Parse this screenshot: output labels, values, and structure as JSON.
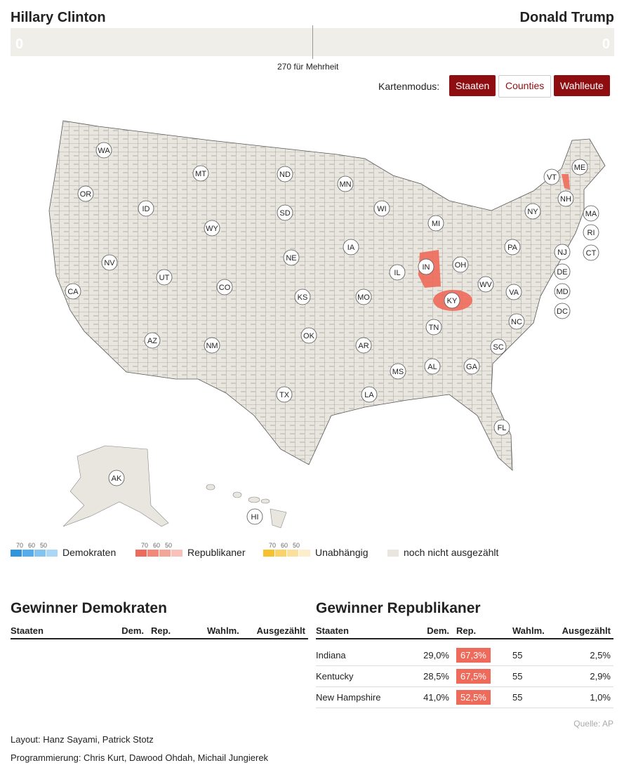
{
  "header": {
    "left_name": "Hillary Clinton",
    "right_name": "Donald Trump",
    "left_count": "0",
    "right_count": "0",
    "majority": "270 für Mehrheit"
  },
  "mode": {
    "label": "Kartenmodus:",
    "buttons": [
      "Staaten",
      "Counties",
      "Wahlleute"
    ]
  },
  "map": {
    "state_labels": [
      "WA",
      "OR",
      "ID",
      "MT",
      "WY",
      "NV",
      "UT",
      "CA",
      "AZ",
      "CO",
      "NM",
      "ND",
      "SD",
      "NE",
      "KS",
      "OK",
      "TX",
      "MN",
      "IA",
      "MO",
      "AR",
      "LA",
      "WI",
      "IL",
      "MS",
      "MI",
      "IN",
      "OH",
      "KY",
      "TN",
      "AL",
      "GA",
      "FL",
      "SC",
      "NC",
      "VA",
      "WV",
      "PA",
      "NY",
      "VT",
      "NH",
      "ME",
      "MA",
      "RI",
      "CT",
      "NJ",
      "DE",
      "MD",
      "DC",
      "AK",
      "HI"
    ]
  },
  "legend": [
    {
      "label": "Demokraten",
      "ticks": [
        "70",
        "60",
        "50"
      ],
      "colors": [
        "#2f95dc",
        "#56acea",
        "#82c3f0",
        "#aad7f5"
      ]
    },
    {
      "label": "Republikaner",
      "ticks": [
        "70",
        "60",
        "50"
      ],
      "colors": [
        "#ee6a5a",
        "#f2877a",
        "#f5a498",
        "#f8c2ba"
      ]
    },
    {
      "label": "Unabhängig",
      "ticks": [
        "70",
        "60",
        "50"
      ],
      "colors": [
        "#f7c12d",
        "#f9d26c",
        "#fbe09c",
        "#fcedcb"
      ]
    },
    {
      "label": "noch nicht ausgezählt",
      "colors": [
        "#e8e6df"
      ]
    }
  ],
  "tables": [
    {
      "title": "Gewinner Demokraten",
      "columns": [
        "Staaten",
        "Dem.",
        "Rep.",
        "Wahlm.",
        "Ausgezählt"
      ],
      "rows": []
    },
    {
      "title": "Gewinner Republikaner",
      "columns": [
        "Staaten",
        "Dem.",
        "Rep.",
        "Wahlm.",
        "Ausgezählt"
      ],
      "rows": [
        [
          "Indiana",
          "29,0%",
          "67,3%",
          "55",
          "2,5%"
        ],
        [
          "Kentucky",
          "28,5%",
          "67,5%",
          "55",
          "2,9%"
        ],
        [
          "New Hampshire",
          "41,0%",
          "52,5%",
          "55",
          "1,0%"
        ]
      ]
    }
  ],
  "source": "Quelle: AP",
  "credits": [
    "Layout: Hanz Sayami, Patrick Stotz",
    "Programmierung: Chris Kurt, Dawood Ohdah, Michail Jungierek"
  ]
}
